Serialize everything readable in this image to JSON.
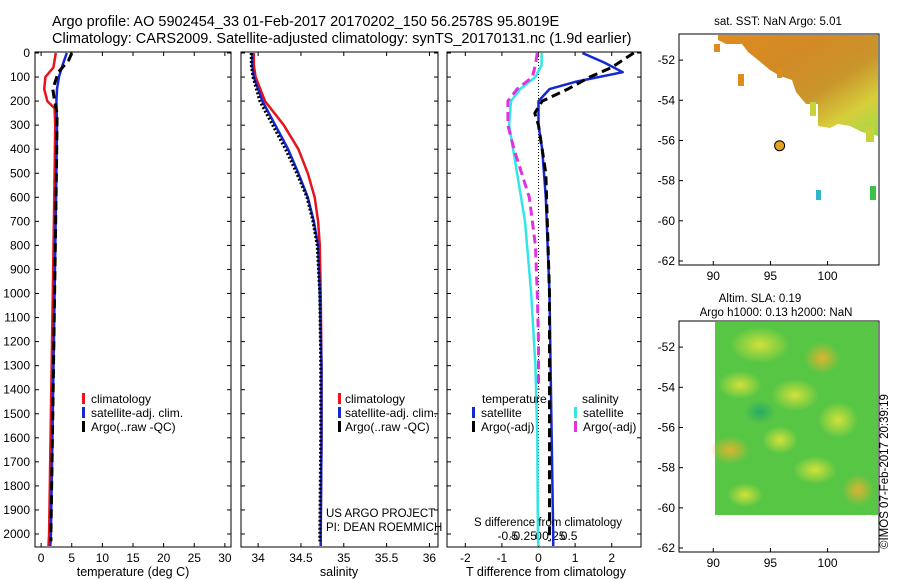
{
  "header": {
    "line1": "Argo profile: AO 5902454_33 01-Feb-2017 20170202_150 56.2578S 95.8019E",
    "line2": "Climatology: CARS2009. Satellite-adjusted climatology: synTS_20170131.nc (1.9d earlier)"
  },
  "credit": {
    "line1": "US ARGO PROJECT",
    "line2": "PI: DEAN ROEMMICH"
  },
  "watermark": "©IMOS 07-Feb-2017 20:39:19",
  "colors": {
    "climatology": "#e8131b",
    "satellite": "#1429d6",
    "argo": "#000000",
    "sat_salinity": "#33e6e6",
    "argo_salinity": "#e033e0"
  },
  "chart_data": [
    {
      "type": "line",
      "title": "",
      "xlabel": "temperature (deg C)",
      "ylabel": "depth",
      "xlim": [
        -1,
        31
      ],
      "ylim": [
        2050,
        0
      ],
      "xticks": [
        0,
        5,
        10,
        15,
        20,
        25,
        30
      ],
      "yticks": [
        0,
        100,
        200,
        300,
        400,
        500,
        600,
        700,
        800,
        900,
        1000,
        1100,
        1200,
        1300,
        1400,
        1500,
        1600,
        1700,
        1800,
        1900,
        2000
      ],
      "legend": [
        "climatology",
        "satellite-adj. clim.",
        "Argo(..raw -QC)"
      ],
      "legend_position": "lower-center",
      "series": [
        {
          "name": "climatology",
          "color": "#e8131b",
          "style": "solid",
          "depth": [
            0,
            60,
            100,
            150,
            200,
            230,
            300,
            500,
            1000,
            1500,
            2000,
            2050
          ],
          "values": [
            2.4,
            2.0,
            0.7,
            0.5,
            1.0,
            2.2,
            2.3,
            2.2,
            1.9,
            1.6,
            1.3,
            1.2
          ]
        },
        {
          "name": "satellite-adj. clim.",
          "color": "#1429d6",
          "style": "solid",
          "depth": [
            0,
            50,
            100,
            150,
            200,
            300,
            500,
            1000,
            1500,
            2000,
            2050
          ],
          "values": [
            4.2,
            3.5,
            2.9,
            2.6,
            2.5,
            2.6,
            2.5,
            2.2,
            1.9,
            1.6,
            1.5
          ]
        },
        {
          "name": "Argo(..raw -QC)",
          "color": "#000000",
          "style": "dashed",
          "depth": [
            0,
            30,
            80,
            150,
            200,
            250,
            300,
            500,
            1000,
            1500,
            2000,
            2030
          ],
          "values": [
            5.0,
            4.5,
            2.8,
            1.9,
            2.2,
            2.6,
            2.6,
            2.5,
            2.2,
            1.9,
            1.6,
            1.6
          ]
        }
      ]
    },
    {
      "type": "line",
      "title": "",
      "xlabel": "salinity",
      "ylabel": "depth",
      "xlim": [
        33.8,
        36.1
      ],
      "ylim": [
        2050,
        0
      ],
      "xticks": [
        34,
        34.5,
        35,
        35.5,
        36
      ],
      "legend": [
        "climatology",
        "satellite-adj. clim.",
        "Argo(..raw -QC)"
      ],
      "legend_position": "lower-center",
      "series": [
        {
          "name": "climatology",
          "color": "#e8131b",
          "style": "solid",
          "depth": [
            0,
            50,
            100,
            200,
            300,
            400,
            500,
            600,
            700,
            800,
            1000,
            1300,
            1600,
            2000,
            2050
          ],
          "values": [
            33.95,
            33.95,
            33.97,
            34.08,
            34.3,
            34.47,
            34.58,
            34.66,
            34.7,
            34.72,
            34.73,
            34.74,
            34.74,
            34.73,
            34.73
          ]
        },
        {
          "name": "satellite-adj. clim.",
          "color": "#1429d6",
          "style": "solid",
          "depth": [
            0,
            50,
            100,
            200,
            300,
            400,
            500,
            600,
            700,
            800,
            1000,
            1300,
            1600,
            2000,
            2050
          ],
          "values": [
            33.93,
            33.93,
            33.95,
            34.05,
            34.2,
            34.35,
            34.47,
            34.58,
            34.65,
            34.7,
            34.72,
            34.74,
            34.74,
            34.73,
            34.73
          ]
        },
        {
          "name": "Argo(..raw -QC)",
          "color": "#000000",
          "style": "dotted",
          "depth": [
            0,
            50,
            100,
            200,
            300,
            400,
            500,
            600,
            700,
            800,
            1000,
            1300,
            1600,
            2000,
            2030
          ],
          "values": [
            33.92,
            33.92,
            33.94,
            34.02,
            34.17,
            34.32,
            34.45,
            34.57,
            34.64,
            34.69,
            34.72,
            34.73,
            34.73,
            34.72,
            34.72
          ]
        }
      ]
    },
    {
      "type": "line",
      "title": "",
      "xlabel": "T difference from climatology",
      "xlabel_top": "S difference from climatology",
      "ylabel": "depth",
      "xlim": [
        -2.5,
        2.8
      ],
      "ylim": [
        2050,
        0
      ],
      "xticks": [
        -2,
        -1,
        0,
        1,
        2
      ],
      "xticks_top": [
        -0.5,
        -0.25,
        0,
        0.25,
        0.5
      ],
      "legend_temperature_title": "temperature",
      "legend_salinity_title": "salinity",
      "legend": [
        "satellite",
        "Argo(-adj)",
        "satellite",
        "Argo(-adj)"
      ],
      "legend_position": "lower-center",
      "series": [
        {
          "name": "temperature satellite",
          "color": "#1429d6",
          "style": "solid",
          "depth": [
            0,
            40,
            80,
            120,
            150,
            200,
            250,
            300,
            400,
            600,
            1000,
            1500,
            2000,
            2050
          ],
          "values": [
            1.2,
            1.8,
            2.3,
            1.0,
            0.3,
            0.0,
            0.0,
            0.0,
            0.1,
            0.2,
            0.3,
            0.35,
            0.4,
            0.4
          ]
        },
        {
          "name": "temperature Argo(-adj)",
          "color": "#000000",
          "style": "dashed",
          "depth": [
            0,
            30,
            60,
            100,
            150,
            200,
            250,
            300,
            500,
            1000,
            1500,
            2000,
            2030
          ],
          "values": [
            2.6,
            2.3,
            2.0,
            1.4,
            0.8,
            0.1,
            -0.1,
            0.0,
            0.2,
            0.3,
            0.3,
            0.3,
            0.3
          ]
        },
        {
          "name": "salinity satellite",
          "color": "#33e6e6",
          "style": "solid",
          "depth": [
            0,
            50,
            100,
            150,
            200,
            300,
            500,
            700,
            1000,
            1300,
            1600,
            2000,
            2050
          ],
          "values": [
            0.05,
            0.05,
            -0.05,
            -0.3,
            -0.45,
            -0.48,
            -0.35,
            -0.22,
            -0.12,
            -0.05,
            -0.02,
            -0.01,
            0.0
          ]
        },
        {
          "name": "salinity Argo(-adj)",
          "color": "#e033e0",
          "style": "dashed",
          "depth": [
            0,
            50,
            100,
            150,
            200,
            300,
            400,
            600,
            800,
            1000,
            1200,
            1400
          ],
          "values": [
            -0.02,
            -0.05,
            -0.1,
            -0.35,
            -0.5,
            -0.5,
            -0.4,
            -0.15,
            -0.05,
            -0.02,
            0.0,
            0.0
          ]
        }
      ]
    },
    {
      "type": "heatmap",
      "title": "sat. SST: NaN Argo: 5.01",
      "xlabel": "",
      "ylabel": "",
      "xlim": [
        87,
        104.5
      ],
      "ylim": [
        -62.2,
        -50.7
      ],
      "xticks": [
        90,
        95,
        100
      ],
      "yticks": [
        -52,
        -54,
        -56,
        -58,
        -60,
        -62
      ],
      "marker": {
        "lon": 95.8,
        "lat": -56.26
      },
      "colors": [
        "#e08b1e",
        "#f0a020",
        "#d2ae2c",
        "#c9d23a",
        "#9bdc49"
      ]
    },
    {
      "type": "heatmap",
      "title": "Altim. SLA: 0.19",
      "subtitle": "Argo h1000: 0.13 h2000: NaN",
      "xlabel": "",
      "ylabel": "",
      "xlim": [
        87,
        104.5
      ],
      "ylim": [
        -62.2,
        -50.7
      ],
      "xticks": [
        90,
        95,
        100
      ],
      "yticks": [
        -52,
        -54,
        -56,
        -58,
        -60,
        -62
      ],
      "colors": [
        "#2fba4a",
        "#67d14a",
        "#b4dd3c",
        "#e6dd38",
        "#ebb22e"
      ]
    }
  ]
}
